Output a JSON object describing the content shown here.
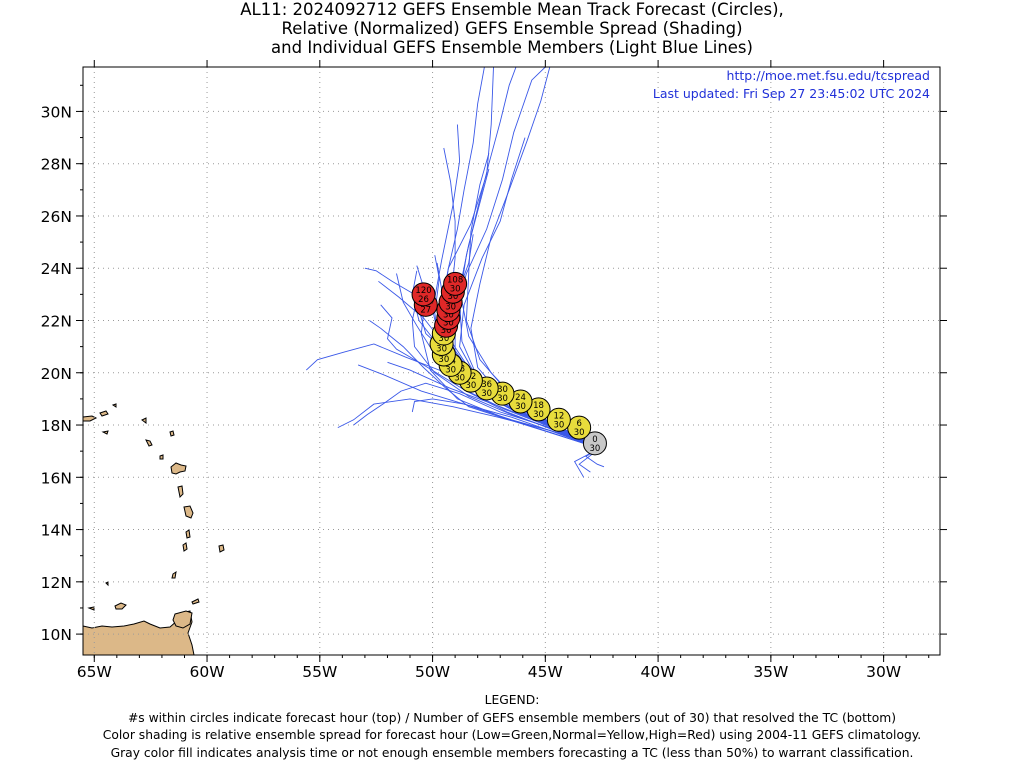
{
  "title_lines": [
    "AL11: 2024092712 GEFS Ensemble Mean Track Forecast (Circles),",
    "Relative (Normalized) GEFS Ensemble Spread (Shading)",
    "and Individual GEFS Ensemble Members (Light Blue Lines)"
  ],
  "credit_url": "http://moe.met.fsu.edu/tcspread",
  "credit_updated": "Last updated: Fri Sep 27 23:45:02 UTC 2024",
  "legend": {
    "heading": "LEGEND:",
    "lines": [
      "#s within circles indicate forecast hour (top) / Number of GEFS ensemble members (out of 30) that resolved the TC (bottom)",
      "Color shading is relative ensemble spread for forecast hour (Low=Green,Normal=Yellow,High=Red) using 2004-11 GEFS climatology.",
      "Gray color fill indicates analysis time or not enough ensemble members forecasting a TC (less than 50%) to warrant classification."
    ]
  },
  "colors": {
    "member_track": "#3a58e8",
    "mean_track": "#1010c0",
    "normal": "#e8dc3c",
    "high": "#e02828",
    "analysis": "#c8c8c8",
    "land": "#dcb888"
  },
  "chart_data": {
    "type": "map-track",
    "x_ticks": [
      {
        "lon": -65,
        "label": "65W"
      },
      {
        "lon": -60,
        "label": "60W"
      },
      {
        "lon": -55,
        "label": "55W"
      },
      {
        "lon": -50,
        "label": "50W"
      },
      {
        "lon": -45,
        "label": "45W"
      },
      {
        "lon": -40,
        "label": "40W"
      },
      {
        "lon": -35,
        "label": "35W"
      },
      {
        "lon": -30,
        "label": "30W"
      }
    ],
    "y_ticks": [
      {
        "lat": 10,
        "label": "10N"
      },
      {
        "lat": 12,
        "label": "12N"
      },
      {
        "lat": 14,
        "label": "14N"
      },
      {
        "lat": 16,
        "label": "16N"
      },
      {
        "lat": 18,
        "label": "18N"
      },
      {
        "lat": 20,
        "label": "20N"
      },
      {
        "lat": 22,
        "label": "22N"
      },
      {
        "lat": 24,
        "label": "24N"
      },
      {
        "lat": 26,
        "label": "26N"
      },
      {
        "lat": 28,
        "label": "28N"
      },
      {
        "lat": 30,
        "label": "30N"
      }
    ],
    "lon_range": [
      -65.5,
      -27.5
    ],
    "lat_range": [
      9.2,
      31.7
    ],
    "grid": true,
    "mean_track": [
      {
        "hour": "0",
        "members": "30",
        "lon": -42.8,
        "lat": 17.3,
        "spread": "analysis"
      },
      {
        "hour": "6",
        "members": "30",
        "lon": -43.5,
        "lat": 17.9,
        "spread": "normal"
      },
      {
        "hour": "12",
        "members": "30",
        "lon": -44.4,
        "lat": 18.2,
        "spread": "normal"
      },
      {
        "hour": "18",
        "members": "30",
        "lon": -45.3,
        "lat": 18.6,
        "spread": "normal"
      },
      {
        "hour": "24",
        "members": "30",
        "lon": -46.1,
        "lat": 18.9,
        "spread": "normal"
      },
      {
        "hour": "30",
        "members": "30",
        "lon": -46.9,
        "lat": 19.2,
        "spread": "normal"
      },
      {
        "hour": "36",
        "members": "30",
        "lon": -47.6,
        "lat": 19.4,
        "spread": "normal"
      },
      {
        "hour": "42",
        "members": "30",
        "lon": -48.3,
        "lat": 19.7,
        "spread": "normal"
      },
      {
        "hour": "48",
        "members": "30",
        "lon": -48.8,
        "lat": 20.0,
        "spread": "normal"
      },
      {
        "hour": "54",
        "members": "30",
        "lon": -49.2,
        "lat": 20.3,
        "spread": "normal"
      },
      {
        "hour": "60",
        "members": "30",
        "lon": -49.5,
        "lat": 20.7,
        "spread": "normal"
      },
      {
        "hour": "66",
        "members": "30",
        "lon": -49.6,
        "lat": 21.1,
        "spread": "normal"
      },
      {
        "hour": "72",
        "members": "30",
        "lon": -49.5,
        "lat": 21.5,
        "spread": "normal"
      },
      {
        "hour": "78",
        "members": "30",
        "lon": -49.4,
        "lat": 21.8,
        "spread": "high"
      },
      {
        "hour": "84",
        "members": "30",
        "lon": -49.3,
        "lat": 22.1,
        "spread": "high"
      },
      {
        "hour": "90",
        "members": "30",
        "lon": -49.3,
        "lat": 22.4,
        "spread": "high"
      },
      {
        "hour": "96",
        "members": "30",
        "lon": -49.2,
        "lat": 22.7,
        "spread": "high"
      },
      {
        "hour": "102",
        "members": "30",
        "lon": -49.1,
        "lat": 23.1,
        "spread": "high"
      },
      {
        "hour": "108",
        "members": "30",
        "lon": -49.0,
        "lat": 23.4,
        "spread": "high"
      },
      {
        "hour": "114",
        "members": "27",
        "lon": -50.3,
        "lat": 22.6,
        "spread": "high"
      },
      {
        "hour": "120",
        "members": "26",
        "lon": -50.4,
        "lat": 23.0,
        "spread": "high"
      }
    ],
    "member_tracks": [
      [
        [
          -42.6,
          17.1
        ],
        [
          -44.5,
          17.9
        ],
        [
          -46.5,
          18.6
        ],
        [
          -48.2,
          19.5
        ],
        [
          -49.0,
          20.8
        ],
        [
          -49.0,
          22.2
        ],
        [
          -48.5,
          23.8
        ],
        [
          -47.6,
          25.5
        ],
        [
          -46.9,
          27.4
        ],
        [
          -46.4,
          29.2
        ],
        [
          -45.6,
          31.2
        ],
        [
          -45.0,
          31.7
        ]
      ],
      [
        [
          -42.6,
          17.1
        ],
        [
          -44.7,
          18.0
        ],
        [
          -46.6,
          18.8
        ],
        [
          -48.0,
          19.8
        ],
        [
          -48.7,
          21.2
        ],
        [
          -48.8,
          22.8
        ],
        [
          -48.5,
          24.5
        ],
        [
          -48.0,
          26.3
        ],
        [
          -47.5,
          28.0
        ],
        [
          -47.0,
          29.6
        ],
        [
          -46.6,
          31.0
        ],
        [
          -46.3,
          31.7
        ]
      ],
      [
        [
          -42.6,
          17.1
        ],
        [
          -44.6,
          17.8
        ],
        [
          -46.7,
          18.5
        ],
        [
          -48.5,
          19.3
        ],
        [
          -49.5,
          20.6
        ],
        [
          -49.6,
          22.4
        ],
        [
          -49.3,
          24.0
        ],
        [
          -48.3,
          25.7
        ],
        [
          -47.6,
          27.6
        ],
        [
          -47.4,
          29.5
        ],
        [
          -47.3,
          31.7
        ]
      ],
      [
        [
          -42.6,
          17.1
        ],
        [
          -44.8,
          18.0
        ],
        [
          -46.7,
          18.9
        ],
        [
          -48.0,
          20.2
        ],
        [
          -48.3,
          21.7
        ],
        [
          -47.9,
          23.4
        ],
        [
          -47.4,
          25.2
        ],
        [
          -46.6,
          27.0
        ],
        [
          -45.8,
          28.9
        ],
        [
          -45.2,
          30.4
        ],
        [
          -44.8,
          31.7
        ]
      ],
      [
        [
          -42.6,
          17.1
        ],
        [
          -44.7,
          17.7
        ],
        [
          -46.9,
          18.3
        ],
        [
          -48.9,
          19.0
        ],
        [
          -50.1,
          20.1
        ],
        [
          -50.5,
          21.5
        ],
        [
          -50.3,
          23.0
        ],
        [
          -50.7,
          24.1
        ]
      ],
      [
        [
          -42.6,
          17.1
        ],
        [
          -44.4,
          17.8
        ],
        [
          -46.3,
          18.6
        ],
        [
          -47.9,
          19.6
        ],
        [
          -48.8,
          21.0
        ],
        [
          -48.6,
          22.6
        ],
        [
          -47.8,
          24.4
        ],
        [
          -47.0,
          25.8
        ],
        [
          -46.5,
          27.4
        ],
        [
          -45.9,
          29.0
        ]
      ],
      [
        [
          -42.6,
          17.1
        ],
        [
          -44.5,
          17.9
        ],
        [
          -46.3,
          18.5
        ],
        [
          -48.0,
          19.3
        ],
        [
          -49.7,
          20.1
        ],
        [
          -51.2,
          20.6
        ],
        [
          -52.6,
          21.1
        ],
        [
          -53.9,
          20.8
        ],
        [
          -55.1,
          20.5
        ],
        [
          -55.6,
          20.1
        ]
      ],
      [
        [
          -42.6,
          17.1
        ],
        [
          -44.8,
          17.8
        ],
        [
          -47.1,
          18.3
        ],
        [
          -49.1,
          18.7
        ],
        [
          -51.0,
          19.0
        ],
        [
          -52.6,
          18.8
        ],
        [
          -53.5,
          18.2
        ],
        [
          -54.2,
          17.9
        ]
      ],
      [
        [
          -42.6,
          17.1
        ],
        [
          -44.6,
          18.0
        ],
        [
          -46.4,
          18.9
        ],
        [
          -48.1,
          19.9
        ],
        [
          -49.4,
          21.0
        ],
        [
          -50.4,
          22.1
        ],
        [
          -51.5,
          22.9
        ],
        [
          -52.4,
          23.5
        ]
      ],
      [
        [
          -42.6,
          17.1
        ],
        [
          -44.7,
          17.9
        ],
        [
          -46.8,
          18.6
        ],
        [
          -48.7,
          19.4
        ],
        [
          -50.4,
          20.3
        ],
        [
          -51.6,
          20.9
        ],
        [
          -52.0,
          21.3
        ],
        [
          -51.8,
          22.1
        ],
        [
          -52.3,
          22.6
        ]
      ],
      [
        [
          -42.6,
          17.1
        ],
        [
          -44.4,
          17.7
        ],
        [
          -46.5,
          18.2
        ],
        [
          -48.6,
          18.8
        ],
        [
          -50.5,
          19.3
        ],
        [
          -52.1,
          19.9
        ],
        [
          -53.3,
          20.3
        ]
      ],
      [
        [
          -42.6,
          17.1
        ],
        [
          -43.8,
          17.5
        ],
        [
          -45.3,
          18.3
        ],
        [
          -47.1,
          19.2
        ],
        [
          -48.9,
          20.4
        ],
        [
          -50.3,
          21.5
        ],
        [
          -50.8,
          23.0
        ],
        [
          -51.8,
          23.5
        ],
        [
          -52.5,
          23.9
        ],
        [
          -53.0,
          24.0
        ]
      ],
      [
        [
          -42.6,
          17.1
        ],
        [
          -44.8,
          18.1
        ],
        [
          -46.6,
          19.2
        ],
        [
          -47.9,
          20.5
        ],
        [
          -48.5,
          22.0
        ],
        [
          -48.4,
          23.8
        ],
        [
          -48.3,
          25.4
        ],
        [
          -47.9,
          27.2
        ],
        [
          -47.5,
          28.4
        ]
      ],
      [
        [
          -42.6,
          17.1
        ],
        [
          -44.5,
          17.9
        ],
        [
          -46.1,
          18.8
        ],
        [
          -47.4,
          20.0
        ],
        [
          -48.4,
          21.4
        ],
        [
          -48.8,
          23.2
        ],
        [
          -48.4,
          24.9
        ],
        [
          -47.9,
          26.5
        ],
        [
          -47.5,
          27.8
        ]
      ],
      [
        [
          -42.6,
          17.1
        ],
        [
          -44.7,
          18.0
        ],
        [
          -46.6,
          18.9
        ],
        [
          -48.4,
          19.9
        ],
        [
          -49.7,
          21.0
        ],
        [
          -50.6,
          22.0
        ],
        [
          -50.9,
          23.0
        ],
        [
          -50.7,
          23.9
        ]
      ],
      [
        [
          -42.6,
          17.1
        ],
        [
          -44.8,
          17.9
        ],
        [
          -47.0,
          18.5
        ],
        [
          -48.8,
          19.2
        ],
        [
          -50.3,
          19.6
        ],
        [
          -51.4,
          19.3
        ],
        [
          -52.2,
          18.8
        ],
        [
          -52.9,
          18.4
        ],
        [
          -53.5,
          18.0
        ]
      ],
      [
        [
          -42.6,
          17.1
        ],
        [
          -44.5,
          17.7
        ],
        [
          -46.5,
          18.3
        ],
        [
          -48.6,
          18.8
        ],
        [
          -50.0,
          19.0
        ],
        [
          -50.8,
          18.9
        ],
        [
          -50.9,
          18.5
        ]
      ],
      [
        [
          -42.6,
          17.1
        ],
        [
          -44.4,
          17.6
        ],
        [
          -46.6,
          18.2
        ],
        [
          -48.4,
          18.7
        ],
        [
          -49.4,
          19.4
        ],
        [
          -50.4,
          20.2
        ],
        [
          -51.3,
          21.0
        ],
        [
          -52.3,
          21.7
        ],
        [
          -52.8,
          22.0
        ]
      ],
      [
        [
          -42.6,
          17.1
        ],
        [
          -44.5,
          18.0
        ],
        [
          -46.4,
          18.8
        ],
        [
          -48.1,
          19.6
        ],
        [
          -49.1,
          20.7
        ],
        [
          -49.6,
          22.0
        ],
        [
          -49.6,
          23.2
        ],
        [
          -49.8,
          24.2
        ]
      ],
      [
        [
          -42.6,
          17.1
        ],
        [
          -44.7,
          18.0
        ],
        [
          -46.8,
          18.8
        ],
        [
          -48.6,
          19.6
        ],
        [
          -49.9,
          20.7
        ],
        [
          -50.7,
          21.8
        ],
        [
          -51.3,
          22.7
        ],
        [
          -51.6,
          23.8
        ]
      ],
      [
        [
          -42.6,
          17.1
        ],
        [
          -44.6,
          18.0
        ],
        [
          -46.4,
          18.8
        ],
        [
          -48.0,
          19.6
        ],
        [
          -49.0,
          20.7
        ],
        [
          -49.3,
          21.8
        ],
        [
          -48.9,
          23.0
        ],
        [
          -48.4,
          24.2
        ],
        [
          -48.2,
          25.3
        ]
      ],
      [
        [
          -42.6,
          17.1
        ],
        [
          -44.6,
          17.9
        ],
        [
          -46.7,
          18.7
        ],
        [
          -48.6,
          19.7
        ],
        [
          -49.7,
          20.9
        ],
        [
          -49.9,
          22.3
        ],
        [
          -49.7,
          23.6
        ],
        [
          -49.9,
          24.5
        ]
      ],
      [
        [
          -42.6,
          17.1
        ],
        [
          -44.5,
          17.8
        ],
        [
          -46.5,
          18.4
        ],
        [
          -48.4,
          19.1
        ],
        [
          -49.9,
          20.0
        ],
        [
          -50.8,
          21.0
        ],
        [
          -50.9,
          22.0
        ],
        [
          -50.6,
          23.2
        ]
      ],
      [
        [
          -42.6,
          17.1
        ],
        [
          -44.9,
          18.0
        ],
        [
          -47.0,
          18.7
        ],
        [
          -49.2,
          19.4
        ],
        [
          -51.0,
          20.1
        ],
        [
          -52.0,
          20.4
        ]
      ],
      [
        [
          -42.6,
          17.1
        ],
        [
          -43.5,
          16.5
        ],
        [
          -43.0,
          16.2
        ]
      ],
      [
        [
          -42.6,
          17.1
        ],
        [
          -43.7,
          16.6
        ],
        [
          -43.3,
          16.0
        ]
      ],
      [
        [
          -42.6,
          17.1
        ],
        [
          -43.2,
          16.8
        ],
        [
          -42.7,
          16.5
        ],
        [
          -42.4,
          16.4
        ]
      ],
      [
        [
          -42.6,
          17.1
        ],
        [
          -44.6,
          18.0
        ],
        [
          -46.5,
          18.9
        ],
        [
          -48.2,
          19.9
        ],
        [
          -49.3,
          21.2
        ],
        [
          -49.6,
          22.6
        ],
        [
          -49.3,
          24.0
        ],
        [
          -48.9,
          25.5
        ],
        [
          -48.6,
          27.0
        ],
        [
          -48.2,
          28.8
        ],
        [
          -48.0,
          30.3
        ],
        [
          -47.7,
          31.7
        ]
      ],
      [
        [
          -42.6,
          17.1
        ],
        [
          -44.6,
          17.9
        ],
        [
          -46.6,
          18.7
        ],
        [
          -48.3,
          19.6
        ],
        [
          -49.6,
          20.9
        ],
        [
          -50.0,
          22.4
        ],
        [
          -49.6,
          24.3
        ],
        [
          -49.1,
          26.4
        ],
        [
          -48.8,
          28.1
        ],
        [
          -48.9,
          29.5
        ]
      ],
      [
        [
          -42.6,
          17.1
        ],
        [
          -44.5,
          18.0
        ],
        [
          -46.4,
          18.8
        ],
        [
          -48.1,
          19.8
        ],
        [
          -49.1,
          21.1
        ],
        [
          -49.2,
          22.7
        ],
        [
          -49.0,
          24.4
        ],
        [
          -49.0,
          25.8
        ],
        [
          -49.2,
          27.3
        ],
        [
          -49.5,
          28.6
        ]
      ]
    ]
  }
}
